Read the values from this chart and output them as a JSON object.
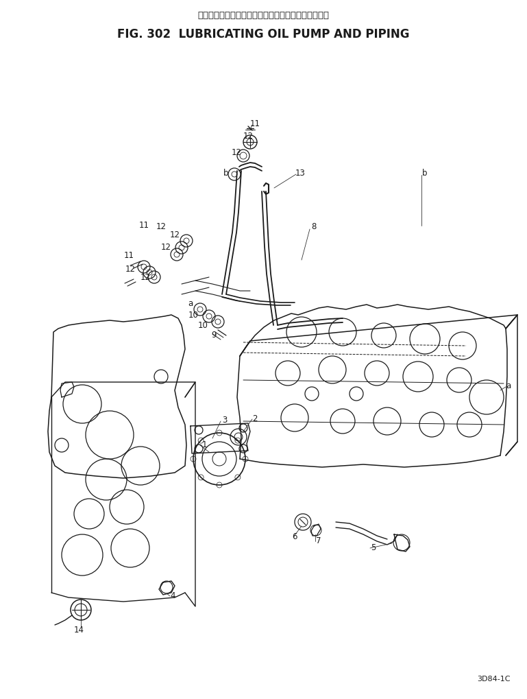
{
  "title_japanese": "ルーブリケーティングオイルポンプおよびパイピング",
  "title_english": "FIG. 302  LUBRICATING OIL PUMP AND PIPING",
  "part_number": "3D84-1C",
  "bg": "#f5f5f0",
  "fg": "#1a1a1a",
  "fig_w": 7.69,
  "fig_h": 10.2,
  "dpi": 100
}
